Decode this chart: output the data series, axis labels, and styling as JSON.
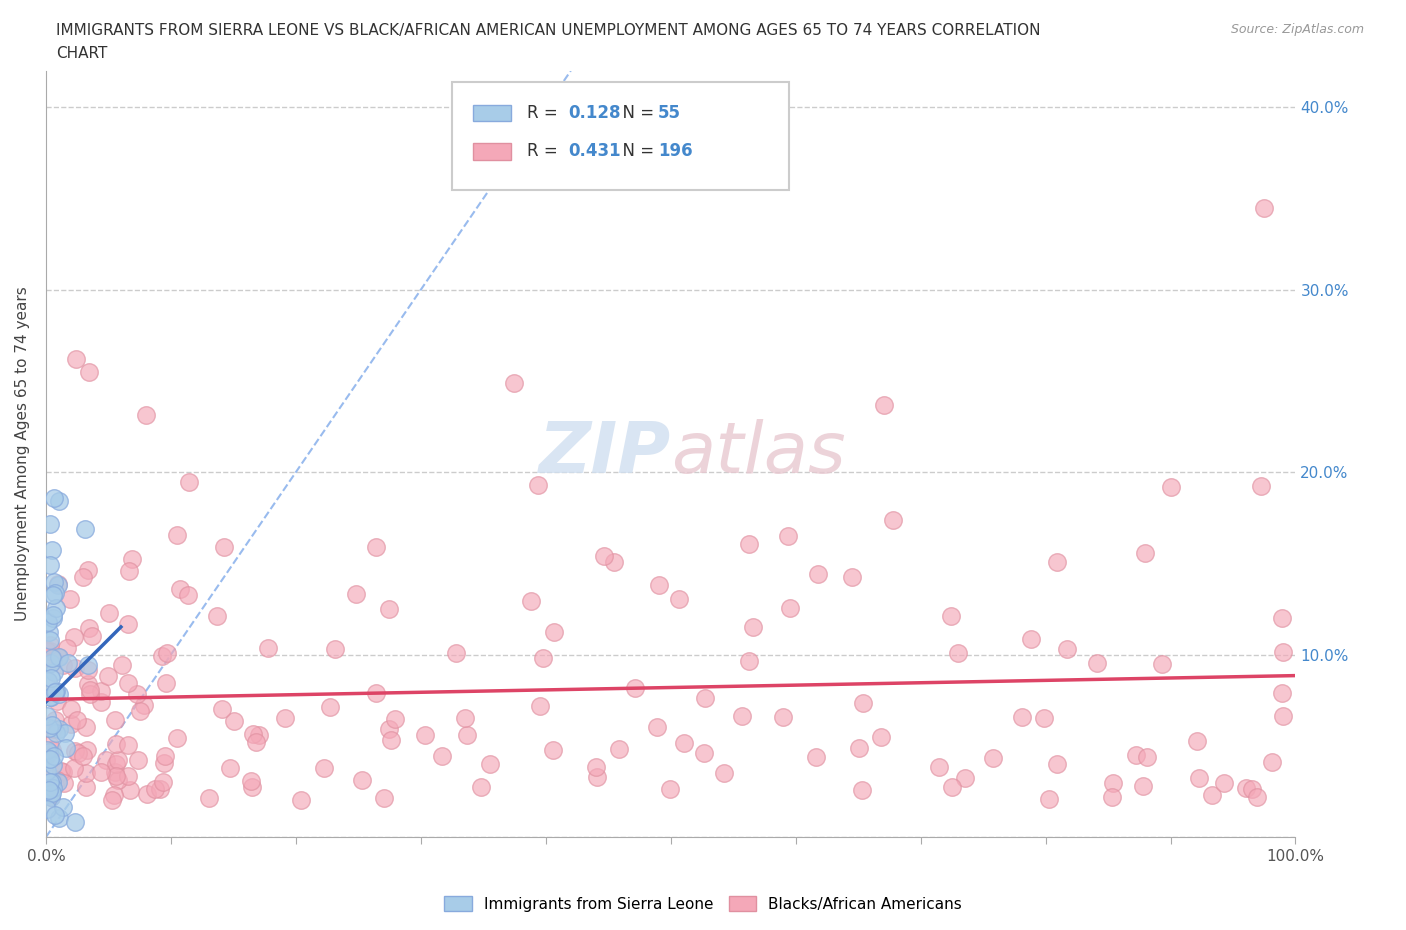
{
  "title_line1": "IMMIGRANTS FROM SIERRA LEONE VS BLACK/AFRICAN AMERICAN UNEMPLOYMENT AMONG AGES 65 TO 74 YEARS CORRELATION",
  "title_line2": "CHART",
  "source_text": "Source: ZipAtlas.com",
  "ylabel": "Unemployment Among Ages 65 to 74 years",
  "xlim": [
    0.0,
    1.0
  ],
  "ylim": [
    0.0,
    0.42
  ],
  "blue_R": 0.128,
  "blue_N": 55,
  "pink_R": 0.431,
  "pink_N": 196,
  "blue_color": "#a8cce8",
  "pink_color": "#f4a8b8",
  "blue_edge_color": "#88aadd",
  "pink_edge_color": "#e090a0",
  "blue_line_color": "#3366bb",
  "pink_line_color": "#dd4466",
  "diagonal_color": "#99bbee",
  "background_color": "#ffffff",
  "grid_color": "#cccccc",
  "ytick_color": "#4488cc",
  "watermark_zip": "ZIP",
  "watermark_atlas": "atlas",
  "legend_label_blue": "Immigrants from Sierra Leone",
  "legend_label_pink": "Blacks/African Americans",
  "legend_R_color": "#333333",
  "legend_N_color": "#4488cc"
}
